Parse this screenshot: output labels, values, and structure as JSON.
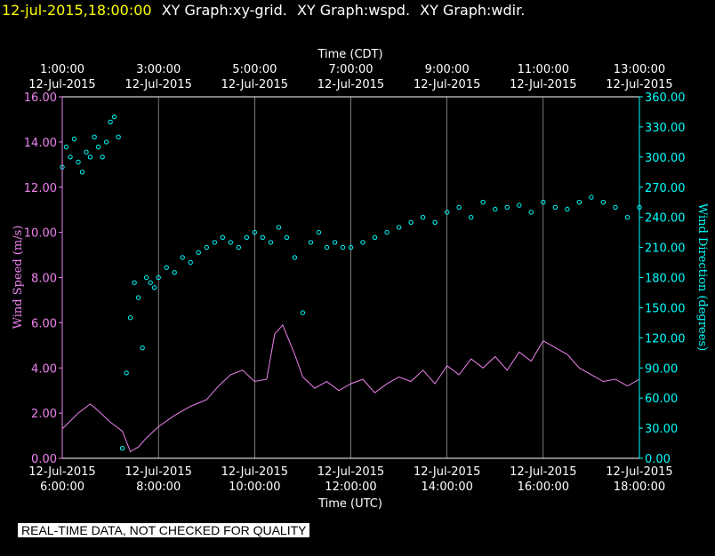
{
  "header": {
    "timestamp": "12-jul-2015,18:00:00",
    "graph_titles": [
      "XY Graph:xy-grid.",
      "XY Graph:wspd.",
      "XY Graph:wdir."
    ]
  },
  "disclaimer": "REAL-TIME DATA, NOT CHECKED FOR QUALITY",
  "colors": {
    "background": "#000000",
    "axes": "#ffffff",
    "wspd": "#ee82ee",
    "wdir": "#00ffff",
    "timestamp": "#ffff00"
  },
  "chart_data": {
    "type": "line",
    "grid": true,
    "x_bottom": {
      "label": "Time (UTC)",
      "ticks": [
        {
          "date": "12-Jul-2015",
          "time": "6:00:00"
        },
        {
          "date": "12-Jul-2015",
          "time": "8:00:00"
        },
        {
          "date": "12-Jul-2015",
          "time": "10:00:00"
        },
        {
          "date": "12-Jul-2015",
          "time": "12:00:00"
        },
        {
          "date": "12-Jul-2015",
          "time": "14:00:00"
        },
        {
          "date": "12-Jul-2015",
          "time": "16:00:00"
        },
        {
          "date": "12-Jul-2015",
          "time": "18:00:00"
        }
      ],
      "range": [
        "2015-07-12 06:00",
        "2015-07-12 18:00"
      ]
    },
    "x_top": {
      "label": "Time (CDT)",
      "ticks": [
        {
          "time": "1:00:00",
          "date": "12-Jul-2015"
        },
        {
          "time": "3:00:00",
          "date": "12-Jul-2015"
        },
        {
          "time": "5:00:00",
          "date": "12-Jul-2015"
        },
        {
          "time": "7:00:00",
          "date": "12-Jul-2015"
        },
        {
          "time": "9:00:00",
          "date": "12-Jul-2015"
        },
        {
          "time": "11:00:00",
          "date": "12-Jul-2015"
        },
        {
          "time": "13:00:00",
          "date": "12-Jul-2015"
        }
      ]
    },
    "y_left": {
      "label": "Wind Speed (m/s)",
      "range": [
        0,
        16
      ],
      "ticks": [
        "0.00",
        "2.00",
        "4.00",
        "6.00",
        "8.00",
        "10.00",
        "12.00",
        "14.00",
        "16.00"
      ]
    },
    "y_right": {
      "label": "Wind Direction (degrees)",
      "range": [
        0,
        360
      ],
      "ticks": [
        "0.00",
        "30.00",
        "60.00",
        "90.00",
        "120.00",
        "150.00",
        "180.00",
        "210.00",
        "240.00",
        "270.00",
        "300.00",
        "330.00",
        "360.00"
      ]
    },
    "series": [
      {
        "axis": "left",
        "style": "line",
        "color": "#ee82ee",
        "x_utc": [
          "06:00",
          "06:20",
          "06:35",
          "06:45",
          "07:00",
          "07:15",
          "07:25",
          "07:35",
          "07:45",
          "08:00",
          "08:20",
          "08:40",
          "09:00",
          "09:15",
          "09:30",
          "09:45",
          "10:00",
          "10:15",
          "10:25",
          "10:35",
          "10:50",
          "11:00",
          "11:15",
          "11:30",
          "11:45",
          "12:00",
          "12:15",
          "12:30",
          "12:45",
          "13:00",
          "13:15",
          "13:30",
          "13:45",
          "14:00",
          "14:15",
          "14:30",
          "14:45",
          "15:00",
          "15:15",
          "15:30",
          "15:45",
          "16:00",
          "16:15",
          "16:30",
          "16:45",
          "17:00",
          "17:15",
          "17:30",
          "17:45",
          "18:00"
        ],
        "values": [
          1.3,
          2.0,
          2.4,
          2.1,
          1.6,
          1.2,
          0.3,
          0.5,
          0.9,
          1.4,
          1.9,
          2.3,
          2.6,
          3.2,
          3.7,
          3.9,
          3.4,
          3.5,
          5.5,
          5.9,
          4.6,
          3.6,
          3.1,
          3.4,
          3.0,
          3.3,
          3.5,
          2.9,
          3.3,
          3.6,
          3.4,
          3.9,
          3.3,
          4.1,
          3.7,
          4.4,
          4.0,
          4.5,
          3.9,
          4.7,
          4.3,
          5.2,
          4.9,
          4.6,
          4.0,
          3.7,
          3.4,
          3.5,
          3.2,
          3.5
        ]
      },
      {
        "axis": "right",
        "style": "circles",
        "color": "#00ffff",
        "x_utc": [
          "06:00",
          "06:05",
          "06:10",
          "06:15",
          "06:20",
          "06:25",
          "06:30",
          "06:35",
          "06:40",
          "06:45",
          "06:50",
          "06:55",
          "07:00",
          "07:05",
          "07:10",
          "07:15",
          "07:20",
          "07:25",
          "07:30",
          "07:35",
          "07:40",
          "07:45",
          "07:50",
          "07:55",
          "08:00",
          "08:10",
          "08:20",
          "08:30",
          "08:40",
          "08:50",
          "09:00",
          "09:10",
          "09:20",
          "09:30",
          "09:40",
          "09:50",
          "10:00",
          "10:10",
          "10:20",
          "10:30",
          "10:40",
          "10:50",
          "11:00",
          "11:10",
          "11:20",
          "11:30",
          "11:40",
          "11:50",
          "12:00",
          "12:15",
          "12:30",
          "12:45",
          "13:00",
          "13:15",
          "13:30",
          "13:45",
          "14:00",
          "14:15",
          "14:30",
          "14:45",
          "15:00",
          "15:15",
          "15:30",
          "15:45",
          "16:00",
          "16:15",
          "16:30",
          "16:45",
          "17:00",
          "17:15",
          "17:30",
          "17:45",
          "18:00"
        ],
        "values": [
          290,
          310,
          300,
          318,
          295,
          285,
          305,
          300,
          320,
          310,
          300,
          315,
          335,
          340,
          320,
          10,
          85,
          140,
          175,
          160,
          110,
          180,
          175,
          170,
          180,
          190,
          185,
          200,
          195,
          205,
          210,
          215,
          220,
          215,
          210,
          220,
          225,
          220,
          215,
          230,
          220,
          200,
          145,
          215,
          225,
          210,
          215,
          210,
          210,
          215,
          220,
          225,
          230,
          235,
          240,
          235,
          245,
          250,
          240,
          255,
          248,
          250,
          252,
          245,
          255,
          250,
          248,
          255,
          260,
          255,
          250,
          240,
          250
        ]
      }
    ]
  }
}
